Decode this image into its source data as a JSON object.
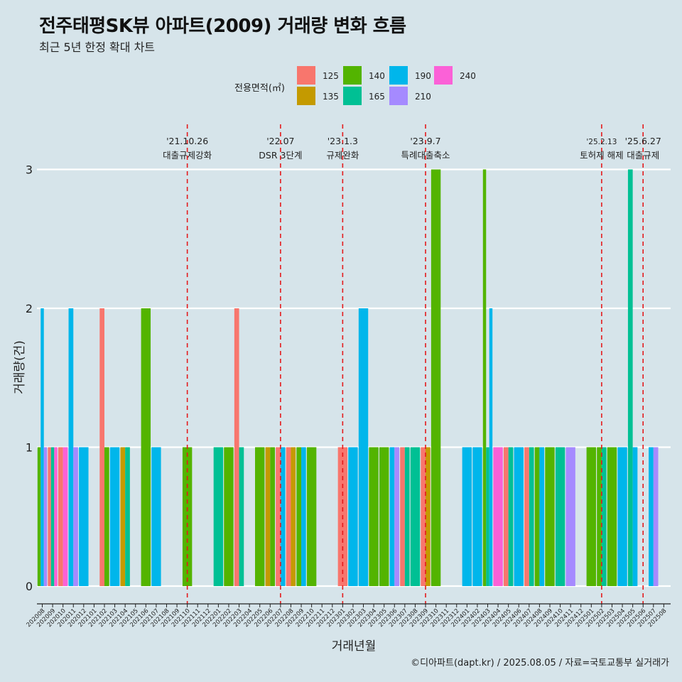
{
  "title": "전주태평SK뷰 아파트(2009) 거래량 변화 흐름",
  "subtitle": "최근 5년 한정 확대 차트",
  "caption": "©디아파트(dapt.kr) / 2025.08.05 / 자료=국토교통부 실거래가",
  "chart_data": {
    "type": "bar",
    "xlabel": "거래년월",
    "ylabel": "거래량(건)",
    "ylim": [
      0,
      3
    ],
    "yticks": [
      0,
      1,
      2,
      3
    ],
    "grid": true,
    "legend": {
      "title": "전용면적(㎡)",
      "position": "top",
      "entries": [
        {
          "name": "125",
          "color": "#F8766D"
        },
        {
          "name": "135",
          "color": "#C49A00"
        },
        {
          "name": "140",
          "color": "#53B400"
        },
        {
          "name": "165",
          "color": "#00C094"
        },
        {
          "name": "190",
          "color": "#00B6EB"
        },
        {
          "name": "210",
          "color": "#A58AFF"
        },
        {
          "name": "240",
          "color": "#FB61D7"
        }
      ]
    },
    "months": [
      "202008",
      "202009",
      "202010",
      "202011",
      "202012",
      "202101",
      "202102",
      "202103",
      "202104",
      "202105",
      "202106",
      "202107",
      "202108",
      "202109",
      "202110",
      "202111",
      "202112",
      "202201",
      "202202",
      "202203",
      "202204",
      "202205",
      "202206",
      "202207",
      "202208",
      "202209",
      "202210",
      "202211",
      "202212",
      "202301",
      "202302",
      "202303",
      "202304",
      "202305",
      "202306",
      "202307",
      "202308",
      "202309",
      "202310",
      "202311",
      "202312",
      "202401",
      "202402",
      "202403",
      "202404",
      "202405",
      "202406",
      "202407",
      "202408",
      "202409",
      "202410",
      "202411",
      "202412",
      "202501",
      "202502",
      "202503",
      "202504",
      "202505",
      "202506",
      "202507",
      "202508"
    ],
    "bars": [
      {
        "month": "202008",
        "values": {
          "140": 1,
          "190": 2,
          "210": 1
        }
      },
      {
        "month": "202009",
        "values": {
          "125": 1,
          "165": 1,
          "240": 1
        }
      },
      {
        "month": "202010",
        "values": {
          "125": 1,
          "240": 1
        }
      },
      {
        "month": "202011",
        "values": {
          "190": 2,
          "210": 1
        }
      },
      {
        "month": "202012",
        "values": {
          "190": 1
        }
      },
      {
        "month": "202102",
        "values": {
          "125": 2,
          "140": 1
        }
      },
      {
        "month": "202103",
        "values": {
          "190": 1
        }
      },
      {
        "month": "202104",
        "values": {
          "135": 1,
          "165": 1
        }
      },
      {
        "month": "202106",
        "values": {
          "140": 2
        }
      },
      {
        "month": "202107",
        "values": {
          "190": 1
        }
      },
      {
        "month": "202110",
        "values": {
          "140": 1
        }
      },
      {
        "month": "202201",
        "values": {
          "165": 1
        }
      },
      {
        "month": "202202",
        "values": {
          "140": 1
        }
      },
      {
        "month": "202203",
        "values": {
          "125": 2,
          "165": 1
        }
      },
      {
        "month": "202205",
        "values": {
          "140": 1
        }
      },
      {
        "month": "202206",
        "values": {
          "135": 1,
          "140": 1
        }
      },
      {
        "month": "202207",
        "values": {
          "125": 1,
          "190": 1
        }
      },
      {
        "month": "202208",
        "values": {
          "125": 1,
          "135": 1
        }
      },
      {
        "month": "202209",
        "values": {
          "140": 1,
          "190": 1
        }
      },
      {
        "month": "202210",
        "values": {
          "140": 1
        }
      },
      {
        "month": "202301",
        "values": {
          "125": 1
        }
      },
      {
        "month": "202302",
        "values": {
          "190": 1
        }
      },
      {
        "month": "202303",
        "values": {
          "190": 2
        }
      },
      {
        "month": "202304",
        "values": {
          "140": 1
        }
      },
      {
        "month": "202305",
        "values": {
          "140": 1
        }
      },
      {
        "month": "202306",
        "values": {
          "190": 1,
          "210": 1
        }
      },
      {
        "month": "202307",
        "values": {
          "125": 1,
          "165": 1
        }
      },
      {
        "month": "202308",
        "values": {
          "165": 1
        }
      },
      {
        "month": "202309",
        "values": {
          "125": 1,
          "135": 1
        }
      },
      {
        "month": "202310",
        "values": {
          "140": 3
        }
      },
      {
        "month": "202401",
        "values": {
          "190": 1
        }
      },
      {
        "month": "202402",
        "values": {
          "190": 1
        }
      },
      {
        "month": "202403",
        "values": {
          "140": 3,
          "165": 1,
          "190": 2
        }
      },
      {
        "month": "202404",
        "values": {
          "240": 1
        }
      },
      {
        "month": "202405",
        "values": {
          "125": 1,
          "165": 1
        }
      },
      {
        "month": "202406",
        "values": {
          "190": 1
        }
      },
      {
        "month": "202407",
        "values": {
          "125": 1,
          "165": 1
        }
      },
      {
        "month": "202408",
        "values": {
          "140": 1,
          "190": 1
        }
      },
      {
        "month": "202409",
        "values": {
          "140": 1
        }
      },
      {
        "month": "202410",
        "values": {
          "165": 1
        }
      },
      {
        "month": "202411",
        "values": {
          "210": 1
        }
      },
      {
        "month": "202501",
        "values": {
          "140": 1
        }
      },
      {
        "month": "202502",
        "values": {
          "140": 1,
          "165": 1
        }
      },
      {
        "month": "202503",
        "values": {
          "140": 1
        }
      },
      {
        "month": "202504",
        "values": {
          "190": 1
        }
      },
      {
        "month": "202505",
        "values": {
          "165": 3,
          "190": 1
        }
      },
      {
        "month": "202507",
        "values": {
          "190": 1,
          "210": 1
        }
      }
    ],
    "annotations": [
      {
        "month": "202110",
        "date": "'21.10.26",
        "label": "대출규제강화"
      },
      {
        "month": "202207",
        "date": "'22.07",
        "label": "DSR 3단계"
      },
      {
        "month": "202301",
        "date": "'23.1.3",
        "label": "규제완화"
      },
      {
        "month": "202309",
        "date": "'23.9.7",
        "label": "특례대출축소"
      },
      {
        "month": "202502",
        "date": "'25.2.13",
        "label": "토허제 해제"
      },
      {
        "month": "202506",
        "date": "'25.6.27",
        "label": "대출규제"
      }
    ]
  }
}
